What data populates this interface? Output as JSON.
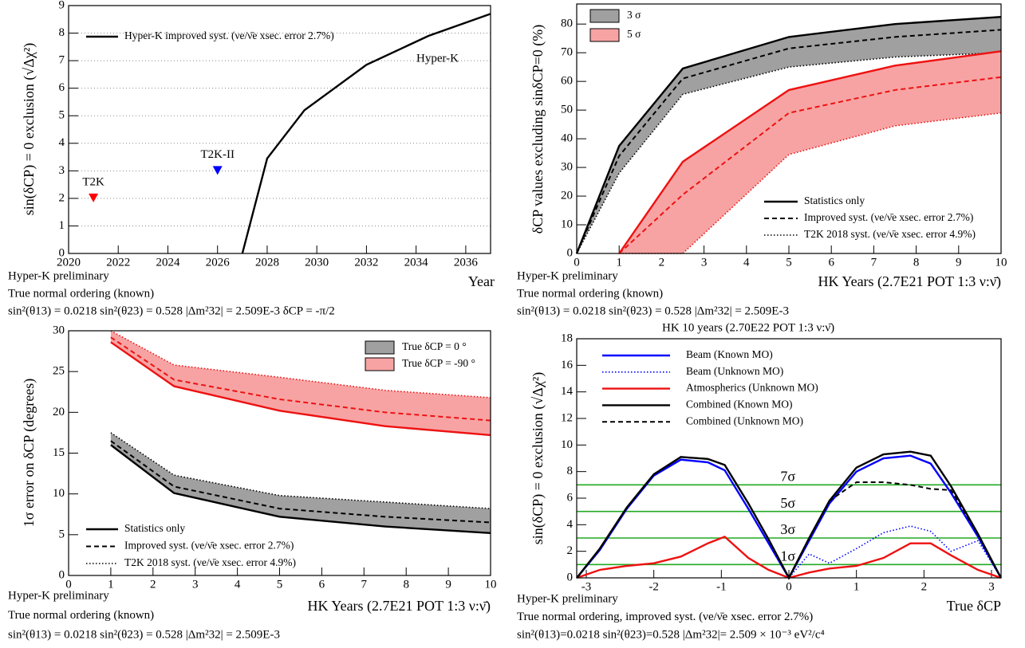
{
  "chart_data": [
    {
      "type": "line",
      "ylabel": "sin(δCP) = 0 exclusion (√Δχ²)",
      "xlabel": "Year",
      "notes": [
        "Hyper-K preliminary",
        "True normal ordering (known)",
        "sin²(θ13) = 0.0218  sin²(θ23) = 0.528  |Δm²32| = 2.509E-3  δCP = -π/2"
      ],
      "annotation": "Hyper-K",
      "x": [
        2027,
        2028,
        2029.5,
        2032,
        2034.5,
        2037
      ],
      "series": [
        {
          "name": "Hyper-K improved syst. (νe/ν̄e xsec. error 2.7%)",
          "color": "#000000",
          "dash": "solid",
          "values": [
            0,
            3.45,
            5.2,
            6.85,
            7.9,
            8.7
          ]
        }
      ],
      "markers": [
        {
          "label": "T2K",
          "x": 2021,
          "y": 2.0,
          "color": "#ff0000"
        },
        {
          "label": "T2K-II",
          "x": 2026,
          "y": 3.0,
          "color": "#0000ff"
        }
      ],
      "xlim": [
        2020,
        2037
      ],
      "xticks": [
        2020,
        2022,
        2024,
        2026,
        2028,
        2030,
        2032,
        2034,
        2036
      ],
      "ylim": [
        0,
        9
      ],
      "yticks": [
        0,
        1,
        2,
        3,
        4,
        5,
        6,
        7,
        8,
        9
      ],
      "grid": true
    },
    {
      "type": "band",
      "ylabel": "δCP values excluding sinδCP=0 (%)",
      "xlabel": "HK Years (2.7E21 POT 1:3 ν:ν̄)",
      "notes": [
        "Hyper-K preliminary",
        "True normal ordering (known)",
        "sin²(θ13) = 0.0218  sin²(θ23) = 0.528  |Δm²32| = 2.509E-3"
      ],
      "x": [
        0,
        1,
        2.5,
        5,
        7.5,
        10
      ],
      "styles": [
        {
          "name": "Statistics only",
          "dash": "solid"
        },
        {
          "name": "Improved syst. (νe/ν̄e xsec. error 2.7%)",
          "dash": "dashed"
        },
        {
          "name": "T2K 2018 syst. (νe/ν̄e xsec. error 4.9%)",
          "dash": "dotted"
        }
      ],
      "bands": [
        {
          "name": "3 σ",
          "color": "#000000",
          "fill": "#a0a0a0",
          "series": [
            {
              "values": [
                0,
                37.5,
                64.5,
                75.5,
                80,
                82.5
              ]
            },
            {
              "values": [
                0,
                34,
                61,
                71.5,
                75.5,
                78
              ]
            },
            {
              "values": [
                0,
                28,
                55.5,
                65,
                68.5,
                70
              ]
            }
          ]
        },
        {
          "name": "5 σ",
          "color": "#ee1111",
          "fill": "#f7a3a3",
          "series": [
            {
              "values": [
                null,
                0,
                32,
                57,
                65.5,
                70.5
              ]
            },
            {
              "values": [
                null,
                0,
                20.5,
                49,
                57,
                61.5
              ]
            },
            {
              "values": [
                null,
                0,
                0,
                34.5,
                44.5,
                49
              ]
            }
          ]
        }
      ],
      "xlim": [
        0,
        10
      ],
      "xticks": [
        0,
        1,
        2,
        3,
        4,
        5,
        6,
        7,
        8,
        9,
        10
      ],
      "ylim": [
        0,
        87
      ],
      "yticks": [
        0,
        10,
        20,
        30,
        40,
        50,
        60,
        70,
        80
      ],
      "grid": false
    },
    {
      "type": "band",
      "ylabel": "1σ error on δCP (degrees)",
      "xlabel": "HK Years (2.7E21 POT 1:3 ν:ν̄)",
      "notes": [
        "Hyper-K preliminary",
        "True normal ordering (known)",
        "sin²(θ13) = 0.0218  sin²(θ23) = 0.528  |Δm²32| = 2.509E-3"
      ],
      "x": [
        1,
        2.5,
        5,
        7.5,
        10
      ],
      "styles": [
        {
          "name": "Statistics only",
          "dash": "solid"
        },
        {
          "name": "Improved syst. (νe/ν̄e xsec. error 2.7%)",
          "dash": "dashed"
        },
        {
          "name": "T2K 2018 syst. (νe/ν̄e xsec. error 4.9%)",
          "dash": "dotted"
        }
      ],
      "bands": [
        {
          "name": "True δCP = 0 °",
          "color": "#000000",
          "fill": "#a0a0a0",
          "series": [
            {
              "values": [
                16,
                10.1,
                7.2,
                6,
                5.2
              ]
            },
            {
              "values": [
                16.5,
                10.9,
                8.2,
                7.2,
                6.5
              ]
            },
            {
              "values": [
                17.5,
                12.3,
                9.8,
                9,
                8.2
              ]
            }
          ]
        },
        {
          "name": "True δCP = -90 °",
          "color": "#ee1111",
          "fill": "#f7a3a3",
          "series": [
            {
              "values": [
                28.6,
                23.2,
                20.2,
                18.3,
                17.2
              ]
            },
            {
              "values": [
                29.2,
                24,
                21.6,
                20,
                19
              ]
            },
            {
              "values": [
                30,
                25.8,
                24.3,
                22.7,
                21.8
              ]
            }
          ]
        }
      ],
      "xlim": [
        0,
        10
      ],
      "xticks": [
        0,
        1,
        2,
        3,
        4,
        5,
        6,
        7,
        8,
        9,
        10
      ],
      "ylim": [
        0,
        30
      ],
      "yticks": [
        0,
        5,
        10,
        15,
        20,
        25,
        30
      ],
      "grid": false
    },
    {
      "type": "line",
      "title": "HK 10 years (2.70E22 POT 1:3 ν:ν̄)",
      "ylabel": "sin(δCP) = 0 exclusion (√Δχ²)",
      "xlabel": "True δCP",
      "notes": [
        "Hyper-K preliminary",
        "True normal ordering, improved syst. (νe/ν̄e xsec. error 2.7%)",
        "sin²(θ13)=0.0218 sin²(θ23)=0.528 |Δm²32|= 2.509 × 10⁻³ eV²/c⁴"
      ],
      "x": [
        -3.14,
        -2.8,
        -2.4,
        -2,
        -1.6,
        -1.2,
        -0.95,
        -0.6,
        -0.3,
        0,
        0.3,
        0.6,
        1,
        1.4,
        1.8,
        2.1,
        2.4,
        2.8,
        3.14
      ],
      "series": [
        {
          "name": "Beam (Known MO)",
          "color": "#0000ff",
          "dash": "solid",
          "values": [
            0,
            2.1,
            5.2,
            7.7,
            8.9,
            8.7,
            8.1,
            5.2,
            2.6,
            0,
            2.8,
            5.6,
            8,
            9,
            9.2,
            8.6,
            6.4,
            3.1,
            0
          ]
        },
        {
          "name": "Beam (Unknown MO)",
          "color": "#0000ff",
          "dash": "dotted",
          "values": [
            0,
            2.1,
            5.2,
            7.7,
            8.9,
            8.7,
            8.1,
            5.2,
            2.6,
            0,
            1.8,
            1.1,
            2.2,
            3.4,
            3.9,
            3.5,
            2.0,
            2.8,
            0
          ]
        },
        {
          "name": "Atmospherics (Unknown MO)",
          "color": "#ee1111",
          "dash": "solid",
          "values": [
            0,
            0.6,
            0.9,
            1.1,
            1.6,
            2.6,
            3.1,
            1.5,
            0.6,
            0,
            0.4,
            0.7,
            0.9,
            1.5,
            2.6,
            2.6,
            1.7,
            0.6,
            0
          ]
        },
        {
          "name": "Combined (Known MO)",
          "color": "#000000",
          "dash": "solid",
          "values": [
            0,
            2.2,
            5.3,
            7.8,
            9.1,
            8.95,
            8.5,
            5.6,
            2.9,
            0,
            3,
            5.8,
            8.3,
            9.3,
            9.5,
            9.2,
            6.9,
            3.3,
            0
          ]
        },
        {
          "name": "Combined (Unknown MO)",
          "color": "#000000",
          "dash": "dashed",
          "values": [
            0,
            2.2,
            5.3,
            7.8,
            9.1,
            8.95,
            8.5,
            5.6,
            2.9,
            0,
            3,
            5.8,
            7.2,
            7.2,
            7,
            6.7,
            6.6,
            3.3,
            0
          ]
        }
      ],
      "levels": [
        {
          "value": 1,
          "label": "1σ"
        },
        {
          "value": 3,
          "label": "3σ"
        },
        {
          "value": 5,
          "label": "5σ"
        },
        {
          "value": 7,
          "label": "7σ"
        }
      ],
      "level_color": "#22aa22",
      "xlim": [
        -3.1416,
        3.1416
      ],
      "xticks": [
        -3,
        -2,
        -1,
        0,
        1,
        2,
        3
      ],
      "ylim": [
        0,
        18
      ],
      "yticks": [
        0,
        2,
        4,
        6,
        8,
        10,
        12,
        14,
        16,
        18
      ],
      "grid": false
    }
  ]
}
